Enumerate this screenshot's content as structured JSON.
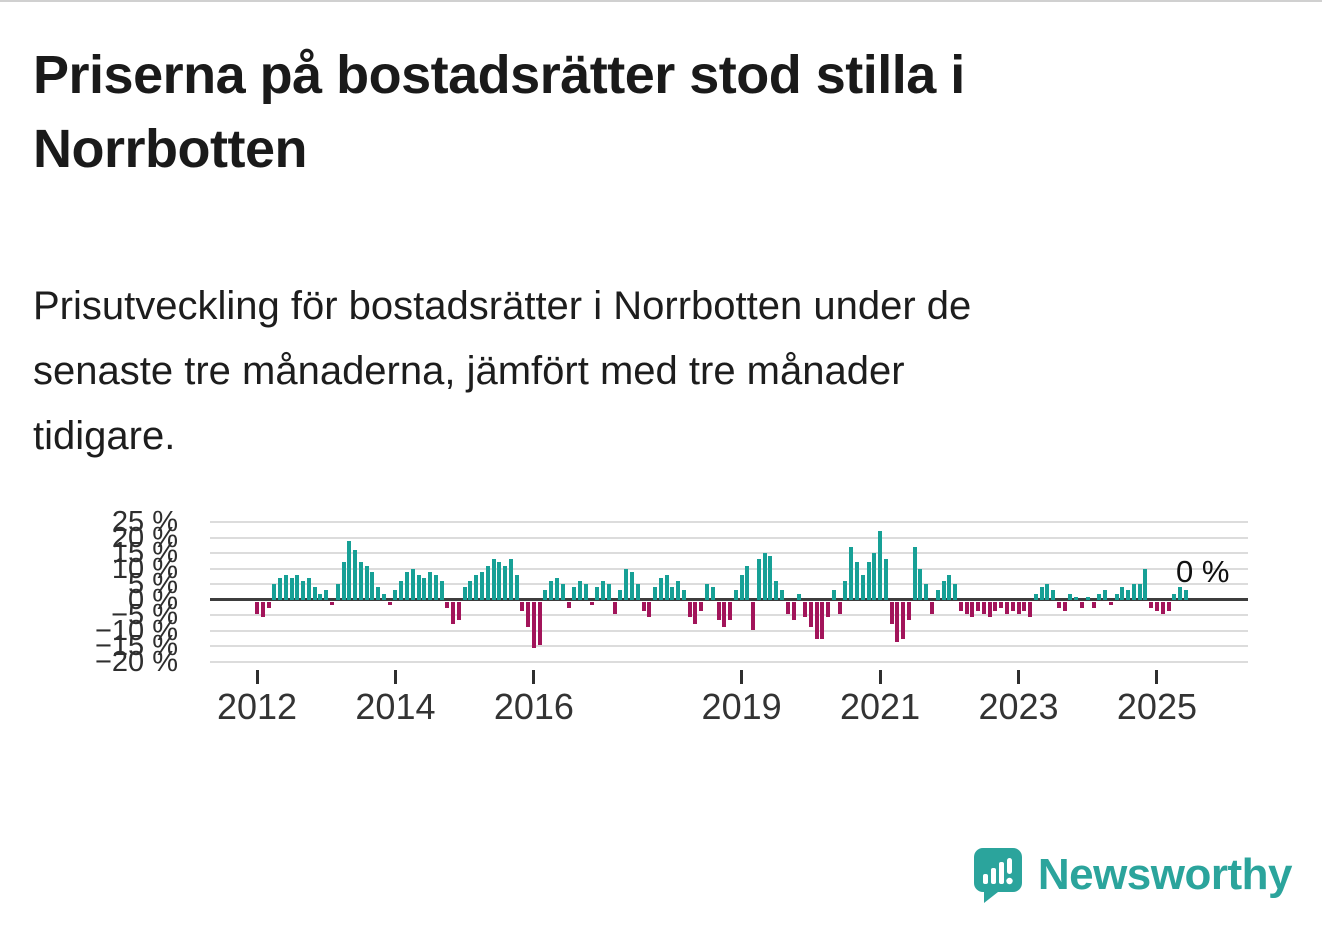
{
  "page": {
    "title_lines": [
      "Priserna på bostadsrätter stod stilla i",
      "Norrbotten"
    ],
    "subtitle_lines": [
      "Prisutveckling för bostadsrätter i Norrbotten under de",
      "senaste tre månaderna, jämfört med tre månader",
      "tidigare."
    ]
  },
  "chart_data": {
    "type": "bar",
    "title": "Priserna på bostadsrätter stod stilla i Norrbotten",
    "subtitle": "Prisutveckling för bostadsrätter i Norrbotten under de senaste tre månaderna, jämfört med tre månader tidigare.",
    "unit": "%",
    "frequency": "monthly",
    "start": "2012-01",
    "values": [
      -4,
      -5,
      -2,
      5,
      7,
      8,
      7,
      8,
      6,
      7,
      4,
      2,
      3,
      -1,
      5,
      12,
      19,
      16,
      12,
      11,
      9,
      4,
      2,
      -1,
      3,
      6,
      9,
      10,
      8,
      7,
      9,
      8,
      6,
      -2,
      -7,
      -6,
      4,
      6,
      8,
      9,
      11,
      13,
      12,
      11,
      13,
      8,
      -3,
      -8,
      -15,
      -14,
      3,
      6,
      7,
      5,
      -2,
      4,
      6,
      5,
      -1,
      4,
      6,
      5,
      -4,
      3,
      10,
      9,
      5,
      -3,
      -5,
      4,
      7,
      8,
      4,
      6,
      3,
      -5,
      -7,
      -3,
      5,
      4,
      -6,
      -8,
      -6,
      3,
      8,
      11,
      -9,
      13,
      15,
      14,
      6,
      3,
      -4,
      -6,
      2,
      -5,
      -8,
      -12,
      -12,
      -5,
      3,
      -4,
      6,
      17,
      12,
      8,
      12,
      15,
      22,
      13,
      -7,
      -13,
      -12,
      -6,
      17,
      10,
      5,
      -4,
      3,
      6,
      8,
      5,
      -3,
      -4,
      -5,
      -3,
      -4,
      -5,
      -3,
      -2,
      -4,
      -3,
      -4,
      -3,
      -5,
      2,
      4,
      5,
      3,
      -2,
      -3,
      2,
      1,
      -2,
      1,
      -2,
      2,
      3,
      -1,
      2,
      4,
      3,
      5,
      5,
      10,
      -2,
      -3,
      -4,
      -3,
      2,
      4,
      3,
      0
    ],
    "ylim": [
      -20,
      25
    ],
    "yticks": [
      {
        "label": "25 %",
        "value": 25
      },
      {
        "label": "20 %",
        "value": 20
      },
      {
        "label": "15 %",
        "value": 15
      },
      {
        "label": "10 %",
        "value": 10
      },
      {
        "label": "5 %",
        "value": 5
      },
      {
        "label": "0 %",
        "value": 0
      },
      {
        "label": "−5 %",
        "value": -5
      },
      {
        "label": "−10 %",
        "value": -10
      },
      {
        "label": "−15 %",
        "value": -15
      },
      {
        "label": "−20 %",
        "value": -20
      }
    ],
    "xticks": [
      {
        "label": "2012",
        "year": 2012
      },
      {
        "label": "2014",
        "year": 2014
      },
      {
        "label": "2016",
        "year": 2016
      },
      {
        "label": "2019",
        "year": 2019
      },
      {
        "label": "2021",
        "year": 2021
      },
      {
        "label": "2023",
        "year": 2023
      },
      {
        "label": "2025",
        "year": 2025
      }
    ],
    "annotation": {
      "label": "0 %",
      "value": 0
    },
    "legend": "none",
    "grid": true,
    "colors": {
      "positive": "#17a096",
      "negative": "#a2145a",
      "zero_line": "#3d3d3d",
      "grid": "#dcdcdc"
    }
  },
  "branding": {
    "name": "Newsworthy",
    "color": "#2ba49c"
  }
}
